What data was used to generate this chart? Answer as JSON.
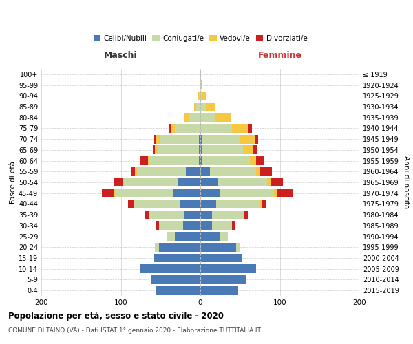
{
  "age_groups": [
    "0-4",
    "5-9",
    "10-14",
    "15-19",
    "20-24",
    "25-29",
    "30-34",
    "35-39",
    "40-44",
    "45-49",
    "50-54",
    "55-59",
    "60-64",
    "65-69",
    "70-74",
    "75-79",
    "80-84",
    "85-89",
    "90-94",
    "95-99",
    "100+"
  ],
  "birth_years": [
    "2015-2019",
    "2010-2014",
    "2005-2009",
    "2000-2004",
    "1995-1999",
    "1990-1994",
    "1985-1989",
    "1980-1984",
    "1975-1979",
    "1970-1974",
    "1965-1969",
    "1960-1964",
    "1955-1959",
    "1950-1954",
    "1945-1949",
    "1940-1944",
    "1935-1939",
    "1930-1934",
    "1925-1929",
    "1920-1924",
    "≤ 1919"
  ],
  "male": {
    "celibi": [
      55,
      62,
      75,
      58,
      52,
      32,
      22,
      20,
      25,
      35,
      28,
      18,
      2,
      2,
      2,
      0,
      0,
      0,
      0,
      0,
      0
    ],
    "coniugati": [
      0,
      0,
      0,
      0,
      5,
      10,
      30,
      45,
      58,
      72,
      68,
      62,
      62,
      52,
      48,
      32,
      15,
      5,
      2,
      0,
      0
    ],
    "vedovi": [
      0,
      0,
      0,
      0,
      0,
      0,
      0,
      0,
      0,
      2,
      2,
      2,
      2,
      3,
      5,
      5,
      5,
      3,
      1,
      0,
      0
    ],
    "divorziati": [
      0,
      0,
      0,
      0,
      0,
      0,
      3,
      5,
      8,
      15,
      10,
      5,
      10,
      3,
      3,
      3,
      0,
      0,
      0,
      0,
      0
    ]
  },
  "female": {
    "nubili": [
      48,
      58,
      70,
      52,
      45,
      25,
      15,
      15,
      20,
      25,
      22,
      12,
      2,
      2,
      2,
      0,
      0,
      0,
      0,
      0,
      0
    ],
    "coniugate": [
      0,
      0,
      0,
      0,
      5,
      10,
      25,
      40,
      55,
      68,
      62,
      58,
      60,
      52,
      48,
      40,
      18,
      8,
      3,
      1,
      0
    ],
    "vedove": [
      0,
      0,
      0,
      0,
      0,
      0,
      0,
      0,
      2,
      3,
      5,
      5,
      8,
      12,
      18,
      20,
      20,
      10,
      5,
      2,
      0
    ],
    "divorziate": [
      0,
      0,
      0,
      0,
      0,
      0,
      3,
      5,
      5,
      20,
      15,
      15,
      10,
      5,
      5,
      5,
      0,
      0,
      0,
      0,
      0
    ]
  },
  "colors": {
    "celibi": "#4a7ab5",
    "coniugati": "#c8d9a8",
    "vedovi": "#f5c842",
    "divorziati": "#cc2020"
  },
  "legend_labels": [
    "Celibi/Nubili",
    "Coniugati/e",
    "Vedovi/e",
    "Divorziati/e"
  ],
  "title": "Popolazione per età, sesso e stato civile - 2020",
  "subtitle": "COMUNE DI TAINO (VA) - Dati ISTAT 1° gennaio 2020 - Elaborazione TUTTITALIA.IT",
  "label_maschi": "Maschi",
  "label_femmine": "Femmine",
  "ylabel_left": "Fasce di età",
  "ylabel_right": "Anni di nascita",
  "xlim": 200,
  "bg_color": "#ffffff",
  "grid_color": "#cccccc"
}
